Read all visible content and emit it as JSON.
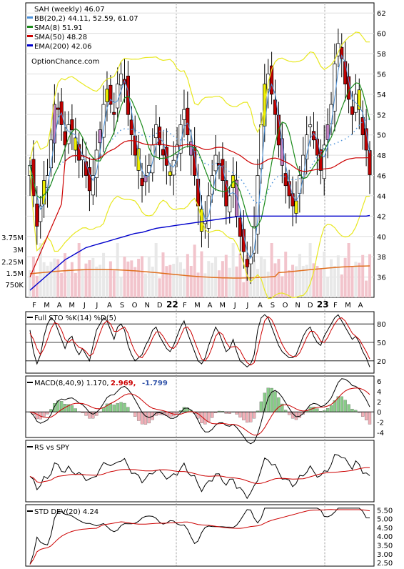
{
  "chart_data": [
    {
      "type": "candlestick",
      "title": "SAH (weekly) 46.07",
      "watermark": "OptionChance.com",
      "ylim": [
        34,
        63
      ],
      "y_ticks": [
        36,
        38,
        40,
        42,
        44,
        46,
        48,
        50,
        52,
        54,
        56,
        58,
        60,
        62
      ],
      "x_month_labels": [
        "F",
        "M",
        "A",
        "M",
        "J",
        "J",
        "A",
        "S",
        "O",
        "N",
        "D",
        "22",
        "F",
        "M",
        "A",
        "M",
        "J",
        "J",
        "A",
        "S",
        "O",
        "N",
        "D",
        "23",
        "F",
        "M",
        "A"
      ],
      "legend": [
        {
          "label": "BB(20,2) 44.11, 52.59, 61.07",
          "color": "#4a90d9"
        },
        {
          "label": "SMA(8) 51.91",
          "color": "#1a8a1a"
        },
        {
          "label": "SMA(50) 48.28",
          "color": "#cc0000"
        },
        {
          "label": "EMA(200) 42.06",
          "color": "#0000cc"
        }
      ],
      "close": [
        47.0,
        44.0,
        41.0,
        43.0,
        45.5,
        46.0,
        49.5,
        53.0,
        52.5,
        51.0,
        49.0,
        51.0,
        50.5,
        48.5,
        47.5,
        48.0,
        46.0,
        44.5,
        46.0,
        48.5,
        50.5,
        53.0,
        54.5,
        53.0,
        52.0,
        55.0,
        56.0,
        55.0,
        52.0,
        50.0,
        48.0,
        46.5,
        45.0,
        46.0,
        47.0,
        49.0,
        51.0,
        49.0,
        48.0,
        47.0,
        46.0,
        47.5,
        49.0,
        51.0,
        52.5,
        50.0,
        48.0,
        46.0,
        43.0,
        40.5,
        41.5,
        44.0,
        46.0,
        48.0,
        47.0,
        45.5,
        43.0,
        44.0,
        46.0,
        42.0,
        40.0,
        38.5,
        37.0,
        38.0,
        41.0,
        46.0,
        51.0,
        55.0,
        56.0,
        54.0,
        52.0,
        49.0,
        47.0,
        45.0,
        44.0,
        43.0,
        43.5,
        46.0,
        48.0,
        50.0,
        51.0,
        49.5,
        48.0,
        46.5,
        49.0,
        51.0,
        53.0,
        57.0,
        59.0,
        57.5,
        55.0,
        53.5,
        52.0,
        54.0,
        52.5,
        50.0,
        48.5,
        46.07
      ],
      "ema200": [
        34.7,
        35.0,
        35.3,
        35.6,
        35.9,
        36.2,
        36.5,
        36.8,
        37.1,
        37.4,
        37.7,
        37.9,
        38.1,
        38.3,
        38.5,
        38.7,
        38.9,
        39.0,
        39.1,
        39.2,
        39.3,
        39.4,
        39.5,
        39.6,
        39.7,
        39.8,
        39.9,
        40.0,
        40.1,
        40.2,
        40.3,
        40.35,
        40.4,
        40.5,
        40.6,
        40.7,
        40.8,
        40.85,
        40.9,
        40.95,
        41.0,
        41.05,
        41.1,
        41.15,
        41.2,
        41.25,
        41.3,
        41.35,
        41.4,
        41.45,
        41.5,
        41.55,
        41.6,
        41.65,
        41.7,
        41.75,
        41.8,
        41.85,
        41.9,
        41.95,
        42.0,
        42.0,
        42.0,
        42.0,
        42.0,
        42.0,
        42.0,
        42.0,
        42.0,
        42.0,
        42.0,
        42.0,
        42.0,
        42.0,
        42.0,
        42.0,
        42.0,
        42.0,
        42.0,
        42.0,
        42.0,
        42.0,
        42.0,
        42.0,
        42.0,
        42.0,
        42.0,
        42.0,
        42.0,
        42.0,
        42.0,
        42.0,
        42.0,
        42.0,
        42.0,
        42.0,
        42.0,
        42.06
      ],
      "volume_ticks": [
        "750K",
        "1.5M",
        "2.25M",
        "3M",
        "3.75M"
      ]
    },
    {
      "type": "line",
      "title": "Full STO %K(14) %D(5)",
      "y_ticks": [
        20,
        50,
        80
      ],
      "ylim": [
        0,
        100
      ],
      "k": [
        70,
        35,
        15,
        30,
        60,
        80,
        90,
        85,
        70,
        55,
        40,
        55,
        60,
        40,
        30,
        40,
        30,
        20,
        45,
        70,
        80,
        90,
        85,
        70,
        55,
        75,
        80,
        70,
        45,
        30,
        20,
        25,
        30,
        45,
        55,
        70,
        75,
        60,
        50,
        40,
        35,
        45,
        60,
        75,
        85,
        65,
        50,
        35,
        20,
        15,
        25,
        45,
        60,
        75,
        65,
        50,
        35,
        40,
        55,
        35,
        20,
        15,
        10,
        15,
        30,
        70,
        90,
        95,
        90,
        75,
        60,
        45,
        35,
        30,
        25,
        25,
        30,
        45,
        60,
        70,
        75,
        60,
        50,
        45,
        60,
        70,
        80,
        90,
        95,
        85,
        75,
        65,
        55,
        60,
        50,
        35,
        25,
        10
      ],
      "d": [
        65,
        55,
        40,
        30,
        40,
        55,
        72,
        82,
        80,
        70,
        55,
        50,
        55,
        48,
        42,
        40,
        35,
        28,
        32,
        48,
        65,
        80,
        85,
        80,
        68,
        68,
        72,
        75,
        65,
        48,
        35,
        27,
        25,
        33,
        43,
        57,
        67,
        67,
        60,
        50,
        42,
        40,
        47,
        60,
        73,
        75,
        67,
        52,
        37,
        23,
        20,
        28,
        42,
        60,
        67,
        63,
        50,
        42,
        43,
        43,
        37,
        26,
        17,
        13,
        17,
        38,
        63,
        85,
        92,
        87,
        75,
        60,
        47,
        37,
        30,
        27,
        27,
        33,
        45,
        58,
        68,
        68,
        62,
        52,
        50,
        58,
        70,
        80,
        88,
        90,
        85,
        75,
        65,
        60,
        55,
        45,
        35,
        23
      ]
    },
    {
      "type": "line",
      "title": "MACD(8,40,9) 1.170, 2.969, -1.799",
      "y_ticks": [
        -4,
        -2,
        0,
        2,
        4,
        6
      ],
      "ylim": [
        -5,
        7
      ],
      "macd_label": "MACD(8,40,9) 1.170,",
      "signal_value_label": "2.969,",
      "hist_value_label": "-1.799"
    },
    {
      "type": "line",
      "title": "RS vs SPY"
    },
    {
      "type": "line",
      "title": "STD DEV(20) 4.24",
      "y_ticks": [
        "2.50",
        "3.00",
        "3.50",
        "4.00",
        "4.50",
        "5.00",
        "5.50"
      ],
      "ylim": [
        2.3,
        5.8
      ]
    }
  ]
}
